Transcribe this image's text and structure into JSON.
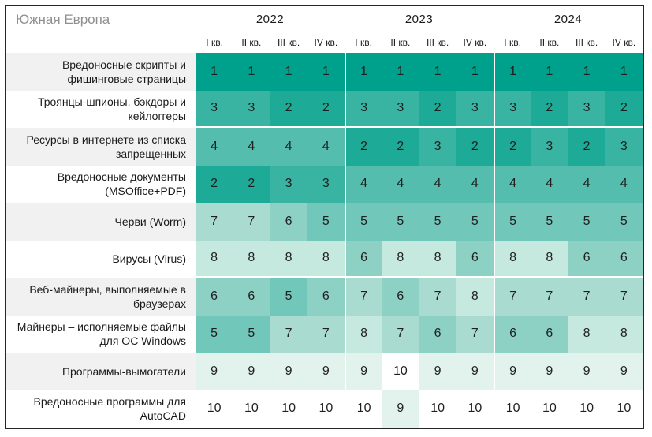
{
  "header": {
    "region": "Южная Европа",
    "years": [
      "2022",
      "2023",
      "2024"
    ],
    "quarters": [
      "I кв.",
      "II кв.",
      "III кв.",
      "IV кв."
    ]
  },
  "colors": {
    "accent_dark": "#00a18c",
    "heat": {
      "1": "#00a18c",
      "2": "#1daa97",
      "3": "#39b3a2",
      "4": "#55bdae",
      "5": "#71c7b9",
      "6": "#8dd1c5",
      "7": "#a9dbd0",
      "8": "#c5e8df",
      "9": "#e2f3ee",
      "10": "#ffffff"
    },
    "label_stripe": "#f1f1f1",
    "region_text": "#8f8f8f",
    "frame_border": "#262626"
  },
  "chart_data": {
    "type": "heatmap",
    "title": "Южная Европа",
    "x_groups": [
      "2022",
      "2023",
      "2024"
    ],
    "x": [
      "2022 I кв.",
      "2022 II кв.",
      "2022 III кв.",
      "2022 IV кв.",
      "2023 I кв.",
      "2023 II кв.",
      "2023 III кв.",
      "2023 IV кв.",
      "2024 I кв.",
      "2024 II кв.",
      "2024 III кв.",
      "2024 IV кв."
    ],
    "scale": {
      "min": 1,
      "max": 10
    },
    "legend_position": "none",
    "rows": [
      {
        "label": "Вредоносные скрипты и фишинговые страницы",
        "values": [
          1,
          1,
          1,
          1,
          1,
          1,
          1,
          1,
          1,
          1,
          1,
          1
        ]
      },
      {
        "label": "Троянцы-шпионы, бэкдоры и кейлоггеры",
        "values": [
          3,
          3,
          2,
          2,
          3,
          3,
          2,
          3,
          3,
          2,
          3,
          2
        ]
      },
      {
        "label": "Ресурсы в интернете из списка запрещенных",
        "values": [
          4,
          4,
          4,
          4,
          2,
          2,
          3,
          2,
          2,
          3,
          2,
          3
        ]
      },
      {
        "label": "Вредоносные документы (MSOffice+PDF)",
        "values": [
          2,
          2,
          3,
          3,
          4,
          4,
          4,
          4,
          4,
          4,
          4,
          4
        ]
      },
      {
        "label": "Черви (Worm)",
        "values": [
          7,
          7,
          6,
          5,
          5,
          5,
          5,
          5,
          5,
          5,
          5,
          5
        ]
      },
      {
        "label": "Вирусы (Virus)",
        "values": [
          8,
          8,
          8,
          8,
          6,
          8,
          8,
          6,
          8,
          8,
          6,
          6
        ]
      },
      {
        "label": "Веб-майнеры, выполняемые в браузерах",
        "values": [
          6,
          6,
          5,
          6,
          7,
          6,
          7,
          8,
          7,
          7,
          7,
          7
        ]
      },
      {
        "label": "Майнеры – исполняемые файлы для ОС Windows",
        "values": [
          5,
          5,
          7,
          7,
          8,
          7,
          6,
          7,
          6,
          6,
          8,
          8
        ]
      },
      {
        "label": "Программы-вымогатели",
        "values": [
          9,
          9,
          9,
          9,
          9,
          10,
          9,
          9,
          9,
          9,
          9,
          9
        ]
      },
      {
        "label": "Вредоносные программы для AutoCAD",
        "values": [
          10,
          10,
          10,
          10,
          10,
          9,
          10,
          10,
          10,
          10,
          10,
          10
        ]
      }
    ]
  }
}
